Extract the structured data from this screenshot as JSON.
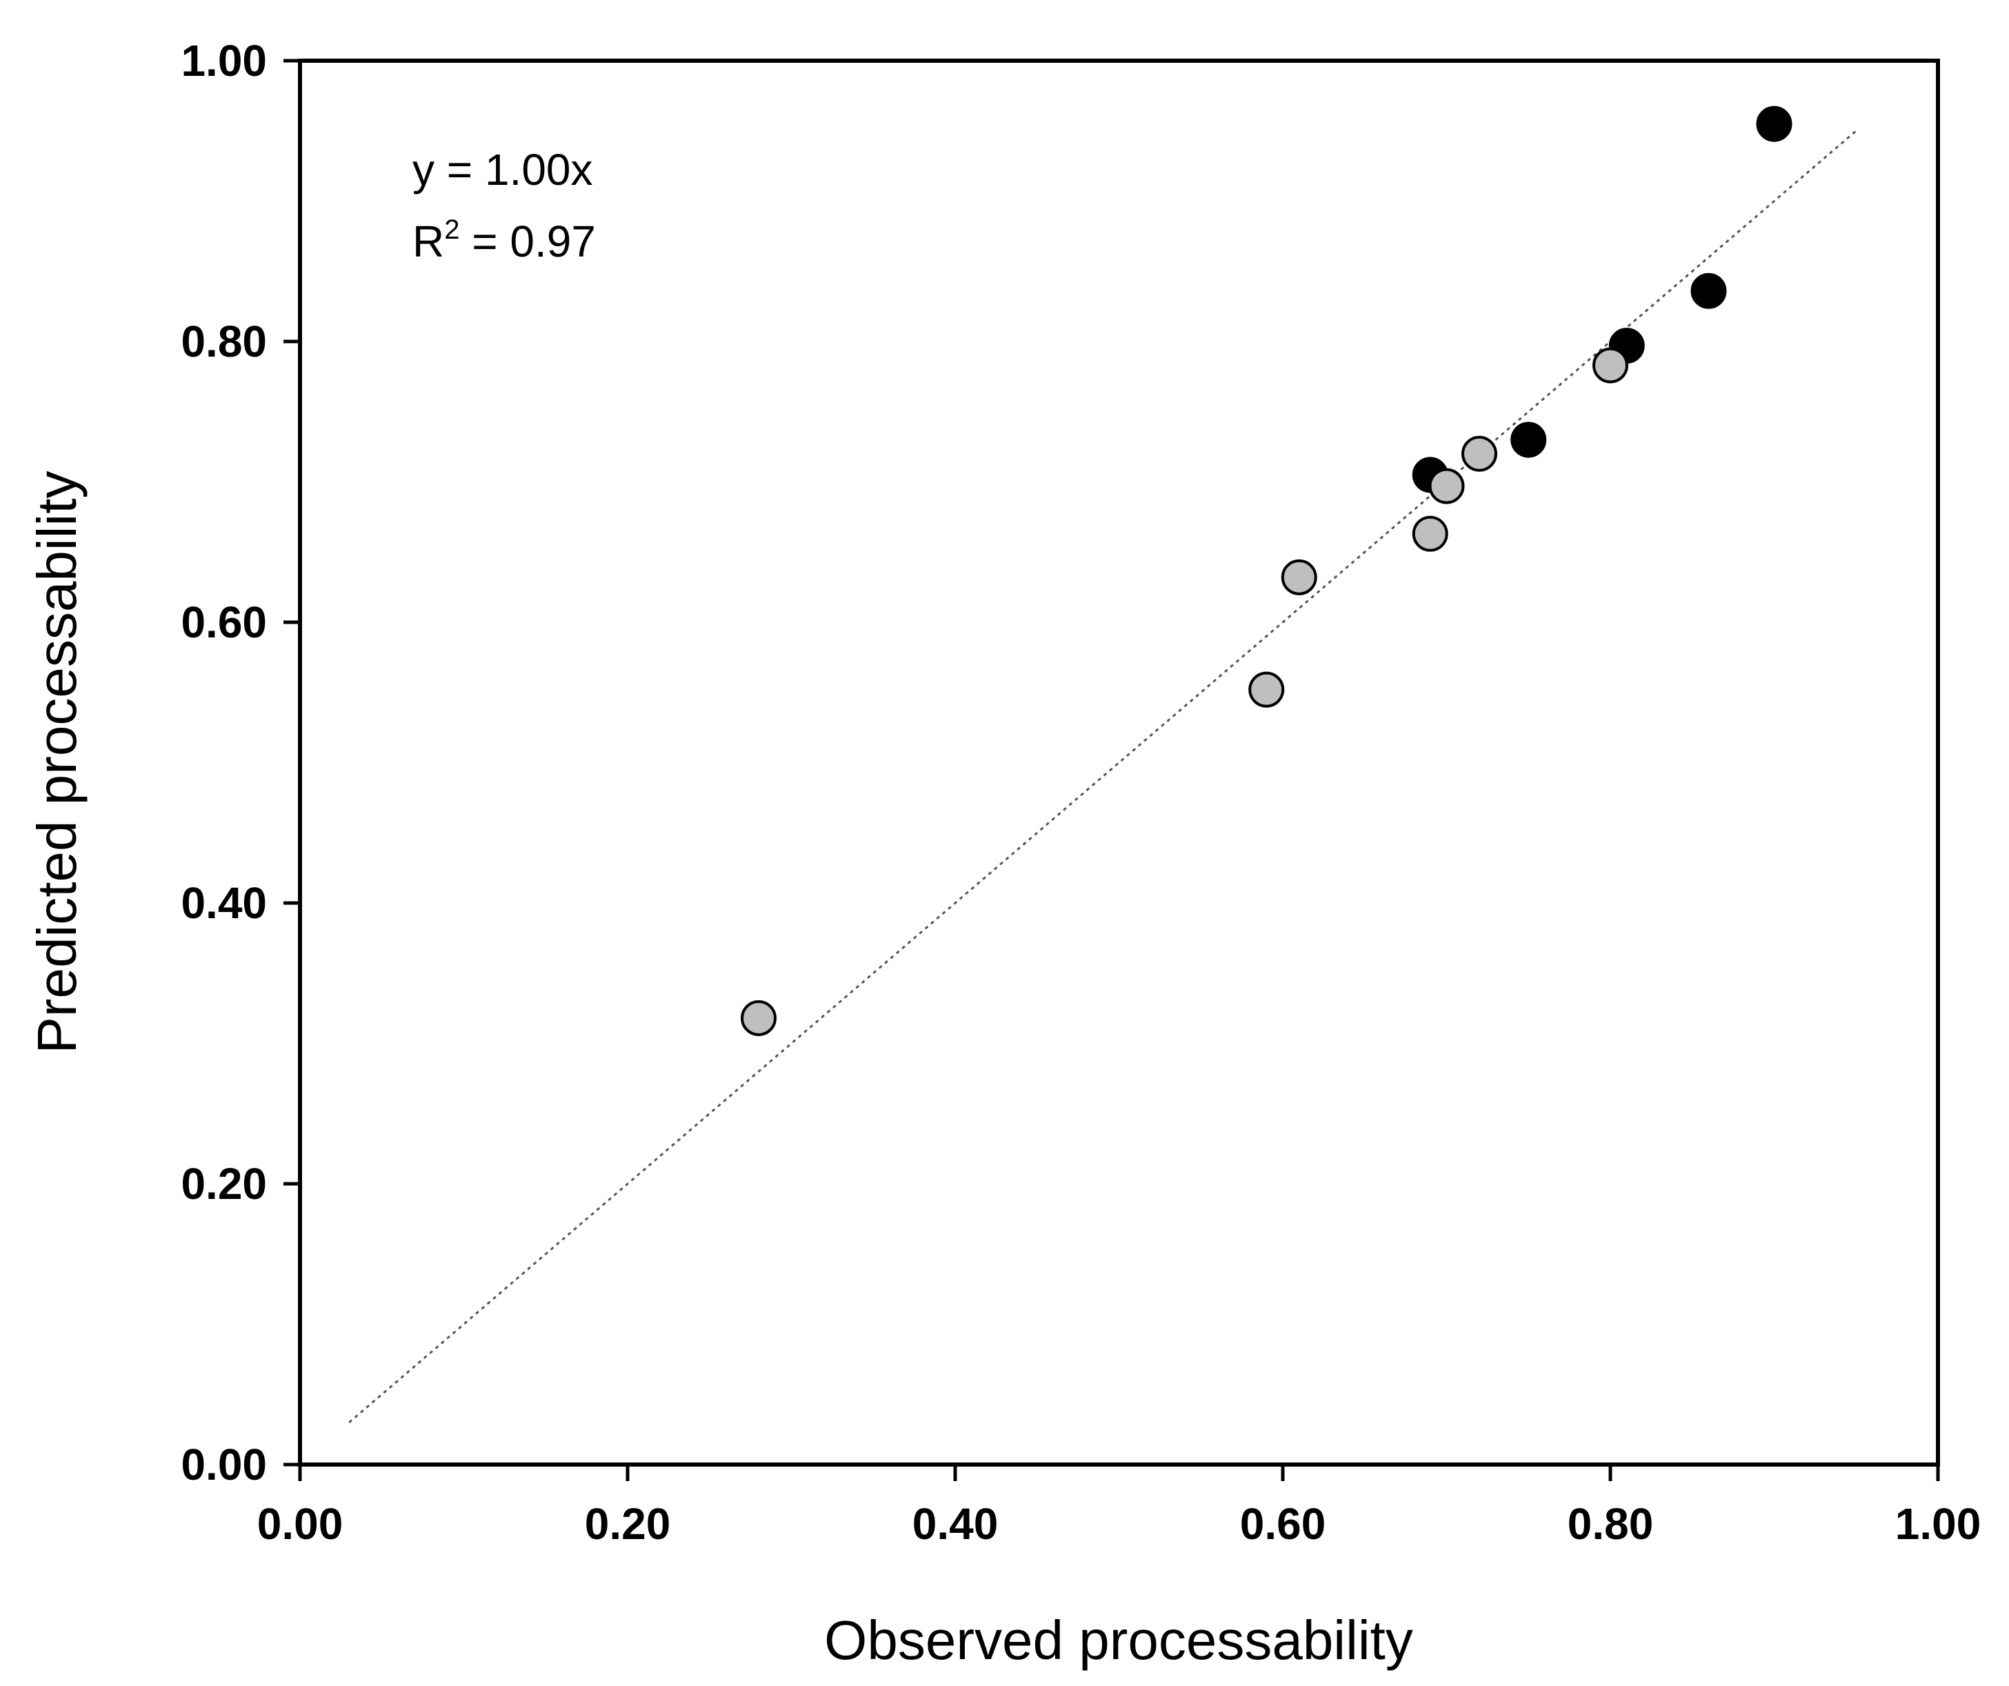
{
  "chart_data": {
    "type": "scatter",
    "title": "",
    "xlabel": "Observed processability",
    "ylabel": "Predicted processability",
    "xlim": [
      0,
      1
    ],
    "ylim": [
      0,
      1
    ],
    "x_ticks": [
      "0.00",
      "0.20",
      "0.40",
      "0.60",
      "0.80",
      "1.00"
    ],
    "y_ticks": [
      "0.00",
      "0.20",
      "0.40",
      "0.60",
      "0.80",
      "1.00"
    ],
    "grid": false,
    "annotation": {
      "equation": "y = 1.00x",
      "r_squared_prefix": "R",
      "r_squared_sup": "2",
      "r_squared_value": " = 0.97"
    },
    "fit_line": {
      "slope": 1.0,
      "x_range": [
        0.03,
        0.95
      ],
      "style": "dotted"
    },
    "series": [
      {
        "name": "black",
        "color": "#000000",
        "points": [
          {
            "x": 0.69,
            "y": 0.705
          },
          {
            "x": 0.75,
            "y": 0.73
          },
          {
            "x": 0.81,
            "y": 0.797
          },
          {
            "x": 0.86,
            "y": 0.836
          },
          {
            "x": 0.9,
            "y": 0.955
          }
        ]
      },
      {
        "name": "gray",
        "color": "#bfbfbf",
        "points": [
          {
            "x": 0.28,
            "y": 0.318
          },
          {
            "x": 0.59,
            "y": 0.552
          },
          {
            "x": 0.61,
            "y": 0.632
          },
          {
            "x": 0.69,
            "y": 0.663
          },
          {
            "x": 0.7,
            "y": 0.697
          },
          {
            "x": 0.72,
            "y": 0.72
          },
          {
            "x": 0.8,
            "y": 0.783
          }
        ]
      }
    ]
  }
}
